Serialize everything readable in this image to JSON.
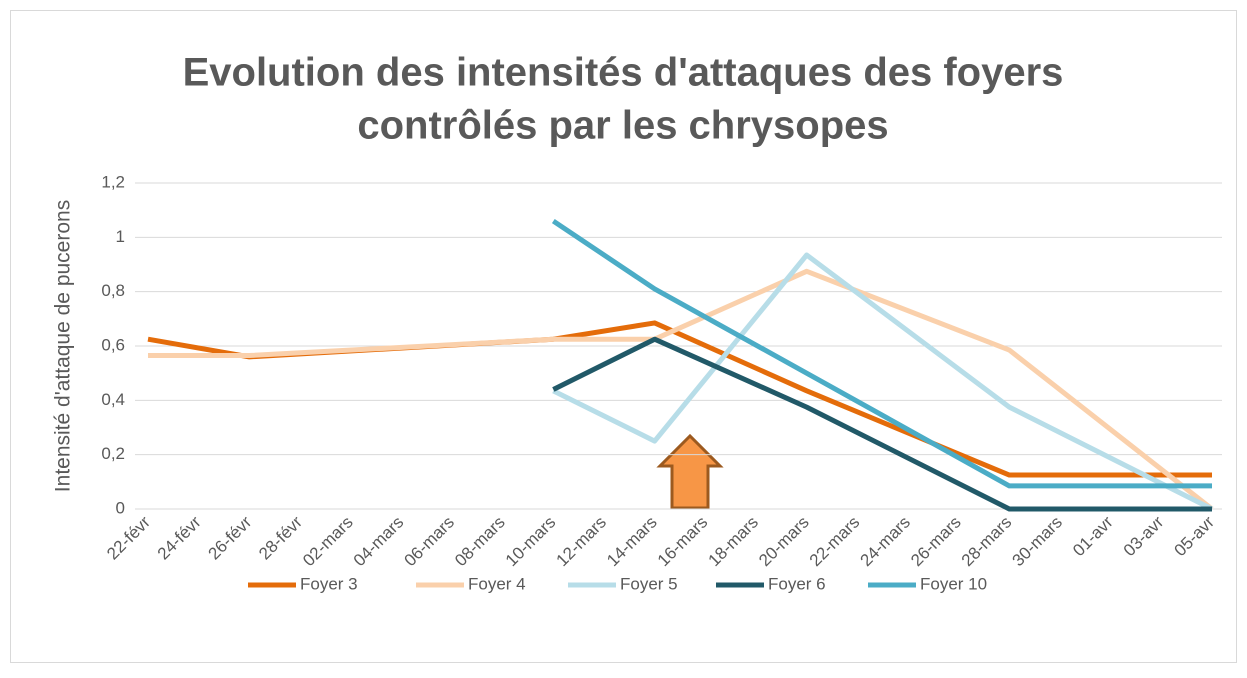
{
  "chart_data": {
    "type": "line",
    "title": [
      "Evolution des intensités d'attaques des foyers",
      "contrôlés par les chrysopes"
    ],
    "y_label": "Intensité d'attaque de pucerons",
    "categories": [
      "22-févr",
      "24-févr",
      "26-févr",
      "28-févr",
      "02-mars",
      "04-mars",
      "06-mars",
      "08-mars",
      "10-mars",
      "12-mars",
      "14-mars",
      "16-mars",
      "18-mars",
      "20-mars",
      "22-mars",
      "24-mars",
      "26-mars",
      "28-mars",
      "30-mars",
      "01-avr",
      "03-avr",
      "05-avr"
    ],
    "series": [
      {
        "name": "Foyer 3",
        "color": "#e46c0a",
        "x": [
          "22-févr",
          "26-févr",
          "10-mars",
          "14-mars",
          "20-mars",
          "28-mars",
          "05-avr"
        ],
        "values": [
          0.625,
          0.56,
          0.625,
          0.685,
          0.435,
          0.125,
          0.125
        ]
      },
      {
        "name": "Foyer 4",
        "color": "#fad0ab",
        "x": [
          "22-févr",
          "26-févr",
          "10-mars",
          "14-mars",
          "20-mars",
          "28-mars",
          "05-avr"
        ],
        "values": [
          0.565,
          0.565,
          0.625,
          0.625,
          0.875,
          0.585,
          0
        ]
      },
      {
        "name": "Foyer 5",
        "color": "#b7dde8",
        "x": [
          "10-mars",
          "14-mars",
          "20-mars",
          "28-mars",
          "05-avr"
        ],
        "values": [
          0.435,
          0.25,
          0.935,
          0.375,
          0
        ]
      },
      {
        "name": "Foyer 6",
        "color": "#215968",
        "x": [
          "10-mars",
          "14-mars",
          "20-mars",
          "28-mars",
          "05-avr"
        ],
        "values": [
          0.44,
          0.625,
          0.375,
          0,
          0
        ]
      },
      {
        "name": "Foyer 10",
        "color": "#4bacc6",
        "x": [
          "10-mars",
          "14-mars",
          "20-mars",
          "28-mars",
          "05-avr"
        ],
        "values": [
          1.06,
          0.81,
          0.5,
          0.085,
          0.085
        ]
      }
    ],
    "ylim": [
      0,
      1.2
    ],
    "yticks": [
      0,
      {
        "value": 0.2,
        "label": "0,2"
      },
      {
        "value": 0.4,
        "label": "0,4"
      },
      {
        "value": 0.6,
        "label": "0,6"
      },
      {
        "value": 0.8,
        "label": "0,8"
      },
      1,
      {
        "value": 1.2,
        "label": "1,2"
      }
    ],
    "grid": true,
    "legend": "bottom"
  }
}
